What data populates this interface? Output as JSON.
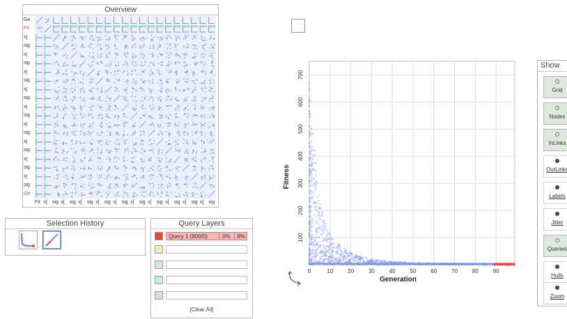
{
  "overview": {
    "title": "Overview",
    "row_labels": [
      "Ge",
      "Fit",
      "x[",
      "sig",
      "x[",
      "sig",
      "x[",
      "sig",
      "x[",
      "sig",
      "x[",
      "sig",
      "x[",
      "sig",
      "x[",
      "sig",
      "x[",
      "sig",
      "x[",
      "sig",
      "Ge"
    ],
    "col_labels": [
      "Fit",
      "x[",
      "sig",
      "x[",
      "sig",
      "x[",
      "sig",
      "x[",
      "sig",
      "x[",
      "sig",
      "x[",
      "sig",
      "x[",
      "sig",
      "x[",
      "sig",
      "x[",
      "sig",
      "x[",
      "sig"
    ],
    "colors": {
      "cell_bg": "#c8d4f0",
      "points": "#7b8fe0",
      "diag": "#88a8ee",
      "highlight": "#7fc9a0",
      "label_red": "#e04040"
    }
  },
  "selection_history": {
    "title": "Selection History",
    "items": [
      {
        "icon": "scatter-thumbnail-icon"
      },
      {
        "icon": "line-thumbnail-icon",
        "selected": true
      }
    ]
  },
  "query_layers": {
    "title": "Query Layers",
    "layers": [
      {
        "color": "#e84a3a",
        "label": "Query 1 (800/0)",
        "pct1": "0%",
        "pct2": "8%",
        "active": true
      },
      {
        "color": "#f0ebb8",
        "label": ""
      },
      {
        "color": "#cdeccd",
        "label": ""
      },
      {
        "color": "#cfe8e8",
        "label": ""
      },
      {
        "color": "#e8d0ec",
        "label": ""
      }
    ],
    "clear_all": "[Clear All]"
  },
  "chart_data": {
    "type": "scatter",
    "xlabel": "Generation",
    "ylabel": "Fitness",
    "xlim": [
      0,
      99
    ],
    "ylim": [
      0,
      750
    ],
    "x_ticks": [
      0,
      10,
      20,
      30,
      40,
      50,
      60,
      70,
      80,
      90
    ],
    "y_ticks": [
      100,
      200,
      300,
      400,
      500,
      600,
      700
    ],
    "grid": true,
    "colors": {
      "points": "#7b90e8",
      "selected": "#e84a4a"
    },
    "envelope": [
      {
        "x": 0,
        "y": 720
      },
      {
        "x": 1,
        "y": 520
      },
      {
        "x": 2,
        "y": 480
      },
      {
        "x": 3,
        "y": 400
      },
      {
        "x": 4,
        "y": 320
      },
      {
        "x": 5,
        "y": 240
      },
      {
        "x": 6,
        "y": 200
      },
      {
        "x": 8,
        "y": 150
      },
      {
        "x": 10,
        "y": 115
      },
      {
        "x": 12,
        "y": 95
      },
      {
        "x": 15,
        "y": 70
      },
      {
        "x": 20,
        "y": 45
      },
      {
        "x": 25,
        "y": 30
      },
      {
        "x": 30,
        "y": 20
      },
      {
        "x": 40,
        "y": 12
      },
      {
        "x": 50,
        "y": 8
      },
      {
        "x": 60,
        "y": 6
      },
      {
        "x": 70,
        "y": 5
      },
      {
        "x": 80,
        "y": 4
      },
      {
        "x": 90,
        "y": 3
      },
      {
        "x": 99,
        "y": 3
      }
    ],
    "selected_x_range": [
      89,
      99
    ]
  },
  "show_panel": {
    "title": "Show",
    "buttons": [
      {
        "label": "Grid",
        "on": true
      },
      {
        "label": "Nodes",
        "on": true
      },
      {
        "label": "InLinks",
        "on": true
      },
      {
        "label": "OutLinks",
        "on": false
      },
      {
        "label": "Labels",
        "on": false
      },
      {
        "label": "Jitter",
        "on": false
      },
      {
        "label": "Queries",
        "on": true
      },
      {
        "label": "Hulls",
        "on": false
      },
      {
        "label": "Zoom",
        "on": false
      }
    ]
  }
}
